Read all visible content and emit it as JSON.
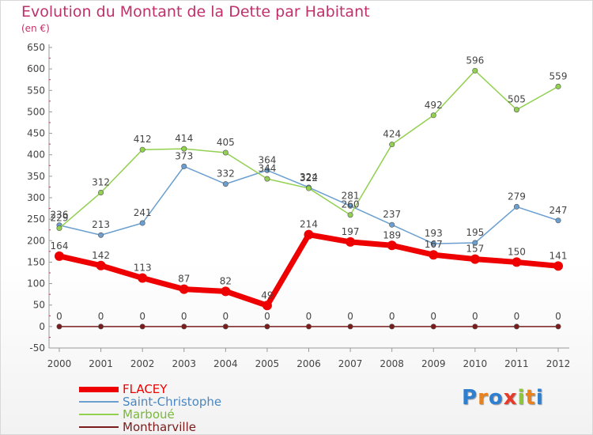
{
  "title": "Evolution du Montant de la Dette par Habitant",
  "unit": "(en €)",
  "logo": {
    "letters": [
      {
        "ch": "P",
        "color": "#2f7fd0"
      },
      {
        "ch": "r",
        "color": "#e8821e"
      },
      {
        "ch": "o",
        "color": "#2f7fd0"
      },
      {
        "ch": "x",
        "color": "#e83a2a"
      },
      {
        "ch": "i",
        "color": "#8cc63f"
      },
      {
        "ch": "t",
        "color": "#e8821e"
      },
      {
        "ch": "i",
        "color": "#2f7fd0"
      }
    ]
  },
  "chart_data": {
    "type": "line",
    "x": [
      2000,
      2001,
      2002,
      2003,
      2004,
      2005,
      2006,
      2007,
      2008,
      2009,
      2010,
      2011,
      2012
    ],
    "ylim": [
      -50,
      650
    ],
    "yticks": [
      -50,
      0,
      50,
      100,
      150,
      200,
      250,
      300,
      350,
      400,
      450,
      500,
      550,
      600,
      650
    ],
    "grid": false,
    "legend_position": "bottom-left",
    "series": [
      {
        "name": "Montharville",
        "color": "#7b1c1c",
        "values": [
          0,
          0,
          0,
          0,
          0,
          0,
          0,
          0,
          0,
          0,
          0,
          0,
          0
        ],
        "labels": true
      },
      {
        "name": "Saint-Christophe",
        "color": "#6a9fd0",
        "values": [
          236,
          213,
          241,
          373,
          332,
          364,
          324,
          281,
          237,
          193,
          195,
          279,
          247
        ],
        "labels": true
      },
      {
        "name": "Marboué",
        "color": "#92d050",
        "values": [
          229,
          312,
          412,
          414,
          405,
          344,
          322,
          260,
          424,
          492,
          596,
          505,
          559
        ],
        "labels": true
      },
      {
        "name": "FLACEY",
        "color": "#ee0000",
        "values": [
          164,
          142,
          113,
          87,
          82,
          49,
          214,
          197,
          189,
          167,
          157,
          150,
          141
        ],
        "labels": true
      }
    ],
    "legend": [
      "FLACEY",
      "Saint-Christophe",
      "Marboué",
      "Montharville"
    ]
  }
}
